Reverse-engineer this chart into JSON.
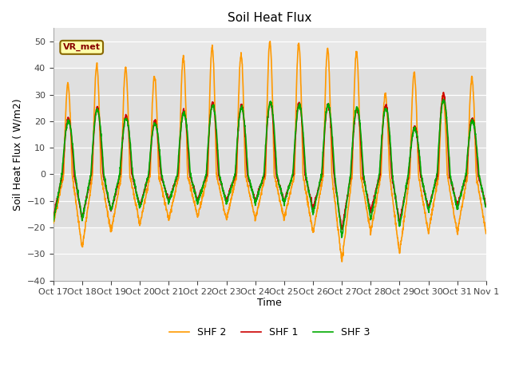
{
  "title": "Soil Heat Flux",
  "ylabel": "Soil Heat Flux ( W/m2)",
  "xlabel": "Time",
  "ylim": [
    -40,
    55
  ],
  "yticks": [
    -40,
    -30,
    -20,
    -10,
    0,
    10,
    20,
    30,
    40,
    50
  ],
  "series_colors": [
    "#cc0000",
    "#ff9900",
    "#00aa00"
  ],
  "series_labels": [
    "SHF 1",
    "SHF 2",
    "SHF 3"
  ],
  "line_width": 1.2,
  "figure_bg": "#ffffff",
  "axes_bg": "#e8e8e8",
  "band_color": "#d8d8d8",
  "annotation_text": "VR_met",
  "annotation_bg": "#ffffaa",
  "annotation_edge": "#886600",
  "annotation_text_color": "#880000",
  "x_tick_labels": [
    "Oct 17",
    "Oct 18",
    "Oct 19",
    "Oct 20",
    "Oct 21",
    "Oct 22",
    "Oct 23",
    "Oct 24",
    "Oct 25",
    "Oct 26",
    "Oct 27",
    "Oct 28",
    "Oct 29",
    "Oct 30",
    "Oct 31",
    "Nov 1"
  ],
  "num_days": 15,
  "points_per_day": 144,
  "shf2_peaks": [
    34,
    41,
    40,
    37,
    44,
    48,
    45,
    50,
    49,
    47,
    46,
    30,
    38,
    30,
    36
  ],
  "shf1_peaks": [
    21,
    25,
    22,
    20,
    24,
    27,
    26,
    27,
    27,
    26,
    25,
    26,
    18,
    30,
    21
  ],
  "shf3_peaks": [
    20,
    24,
    21,
    19,
    23,
    26,
    25,
    27,
    26,
    26,
    25,
    25,
    17,
    28,
    20
  ],
  "shf2_nights": [
    -19,
    -28,
    -22,
    -19,
    -17,
    -16,
    -17,
    -17,
    -17,
    -22,
    -33,
    -22,
    -30,
    -22,
    -22
  ],
  "shf1_nights": [
    -16,
    -17,
    -14,
    -12,
    -10,
    -10,
    -10,
    -10,
    -10,
    -13,
    -21,
    -14,
    -18,
    -13,
    -12
  ],
  "shf3_nights": [
    -18,
    -17,
    -14,
    -13,
    -11,
    -11,
    -11,
    -11,
    -11,
    -15,
    -24,
    -17,
    -20,
    -14,
    -13
  ]
}
